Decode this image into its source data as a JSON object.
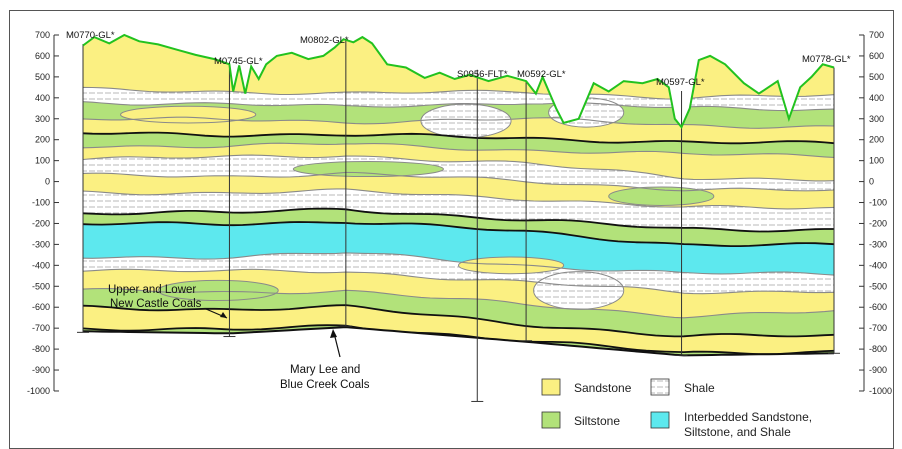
{
  "figure": {
    "y_axis": {
      "ticks": [
        "700",
        "600",
        "500",
        "400",
        "300",
        "200",
        "100",
        "0",
        "-100",
        "-200",
        "-300",
        "-400",
        "-500",
        "-600",
        "-700",
        "-800",
        "-900",
        "-1000"
      ],
      "range": [
        -1000,
        700
      ]
    },
    "wells": [
      {
        "name": "M0770-GL*",
        "pos": 0.0
      },
      {
        "name": "M0745-GL*",
        "pos": 0.195
      },
      {
        "name": "M0802-GL*",
        "pos": 0.35
      },
      {
        "name": "S0956-FLT*",
        "pos": 0.525
      },
      {
        "name": "M0592-GL*",
        "pos": 0.59
      },
      {
        "name": "M0597-GL*",
        "pos": 0.797
      },
      {
        "name": "M0778-GL*",
        "pos": 1.0
      }
    ],
    "annotations": {
      "new_castle_line1": "Upper and Lower",
      "new_castle_line2": "New Castle Coals",
      "mary_lee_line1": "Mary Lee and",
      "mary_lee_line2": "Blue Creek Coals"
    },
    "legend": [
      {
        "label": "Sandstone",
        "color": "#fbf082"
      },
      {
        "label": "Shale",
        "color": "#ffffff"
      },
      {
        "label": "Siltstone",
        "color": "#b2e27a"
      },
      {
        "label_line1": "Interbedded Sandstone,",
        "label_line2": "Siltstone, and Shale",
        "color": "#5de8ee"
      }
    ],
    "colors": {
      "ground_line": "#22c21f",
      "coal": "#111111",
      "bed_boundary": "#8a8a8a"
    }
  }
}
